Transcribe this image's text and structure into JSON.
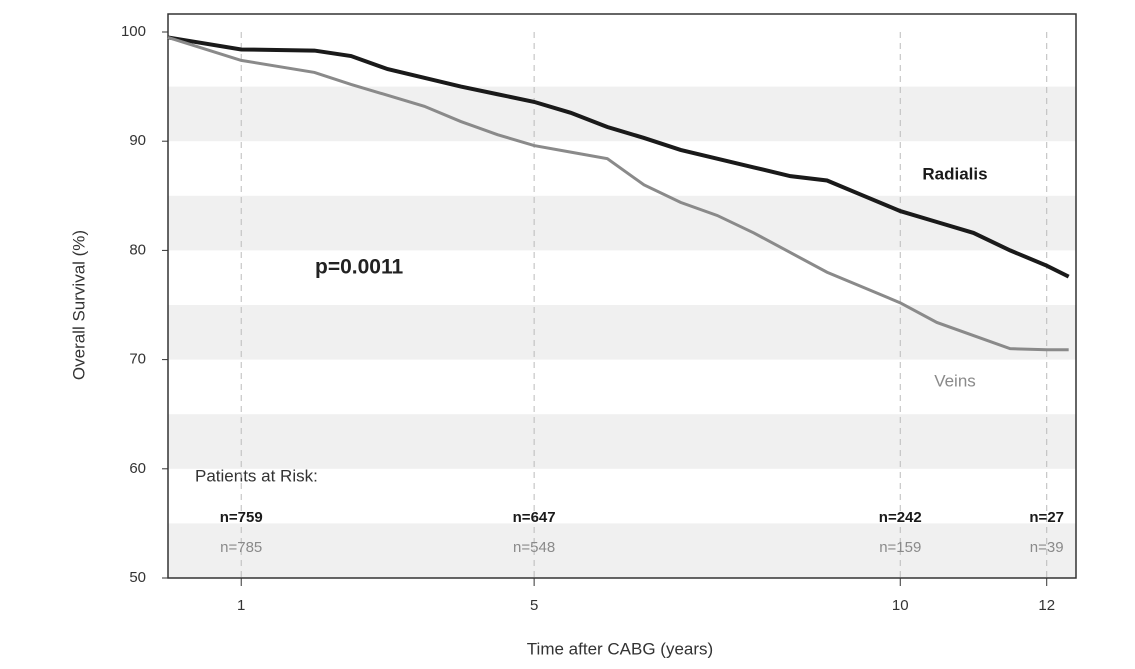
{
  "chart_data": {
    "type": "line",
    "y_label": "Overall Survival (%)",
    "x_label": "Time after CABG (years)",
    "annotation": "p=0.0011",
    "risk_title": "Patients at Risk:",
    "xlim": [
      0,
      12.4
    ],
    "ylim": [
      50,
      100
    ],
    "xticks": [
      1,
      5,
      10,
      12
    ],
    "yticks": [
      50,
      60,
      70,
      80,
      90,
      100
    ],
    "grid": true,
    "series": [
      {
        "name": "Radialis",
        "color": "#1a1a1a",
        "x": [
          0,
          1,
          2,
          2.5,
          3,
          3.5,
          4,
          4.5,
          5,
          5.5,
          6,
          6.5,
          7,
          7.5,
          8,
          8.5,
          9,
          9.5,
          10,
          10.5,
          11,
          11.5,
          12,
          12.3
        ],
        "values": [
          99.5,
          98.4,
          98.3,
          97.8,
          96.6,
          95.8,
          95,
          94.3,
          93.6,
          92.6,
          91.3,
          90.3,
          89.2,
          88.4,
          87.6,
          86.8,
          86.4,
          85,
          83.6,
          82.6,
          81.6,
          80,
          78.6,
          77.6
        ],
        "risk": [
          "n=759",
          "n=647",
          "n=242",
          "n=27"
        ]
      },
      {
        "name": "Veins",
        "color": "#8a8a8a",
        "x": [
          0,
          1,
          2,
          2.5,
          3,
          3.5,
          4,
          4.5,
          5,
          5.5,
          6,
          6.5,
          7,
          7.5,
          8,
          8.5,
          9,
          9.5,
          10,
          10.5,
          11,
          11.5,
          12,
          12.3
        ],
        "values": [
          99.5,
          97.4,
          96.3,
          95.2,
          94.2,
          93.2,
          91.8,
          90.6,
          89.6,
          89,
          88.4,
          86,
          84.4,
          83.2,
          81.6,
          79.8,
          78,
          76.6,
          75.2,
          73.4,
          72.2,
          71,
          70.9,
          70.9
        ],
        "risk": [
          "n=785",
          "n=548",
          "n=159",
          "n=39"
        ]
      }
    ]
  }
}
